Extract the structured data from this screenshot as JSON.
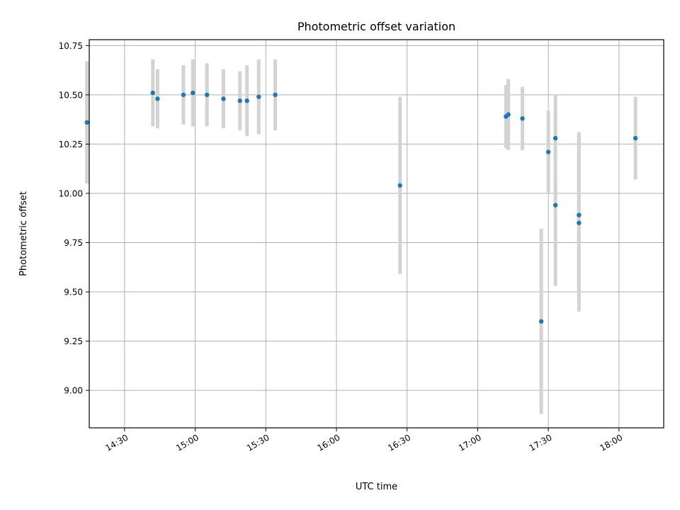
{
  "chart_data": {
    "type": "scatter",
    "title": "Photometric offset variation",
    "xlabel": "UTC time",
    "ylabel": "Photometric offset",
    "x_ticks": [
      "14:30",
      "15:00",
      "15:30",
      "16:00",
      "16:30",
      "17:00",
      "17:30",
      "18:00"
    ],
    "y_ticks": [
      "9.00",
      "9.25",
      "9.50",
      "9.75",
      "10.00",
      "10.25",
      "10.50",
      "10.75"
    ],
    "xlim": [
      "14:15",
      "18:19"
    ],
    "ylim": [
      8.81,
      10.78
    ],
    "grid": true,
    "errorbar_color": "#d3d3d3",
    "point_color": "#1f77b4",
    "series": [
      {
        "points": [
          {
            "x": "14:14",
            "y": 10.36,
            "err": 0.31
          },
          {
            "x": "14:42",
            "y": 10.51,
            "err": 0.17
          },
          {
            "x": "14:44",
            "y": 10.48,
            "err": 0.15
          },
          {
            "x": "14:55",
            "y": 10.5,
            "err": 0.15
          },
          {
            "x": "14:59",
            "y": 10.51,
            "err": 0.17
          },
          {
            "x": "15:05",
            "y": 10.5,
            "err": 0.16
          },
          {
            "x": "15:12",
            "y": 10.48,
            "err": 0.15
          },
          {
            "x": "15:19",
            "y": 10.47,
            "err": 0.15
          },
          {
            "x": "15:22",
            "y": 10.47,
            "err": 0.18
          },
          {
            "x": "15:27",
            "y": 10.49,
            "err": 0.19
          },
          {
            "x": "15:34",
            "y": 10.5,
            "err": 0.18
          },
          {
            "x": "16:27",
            "y": 10.04,
            "err": 0.45
          },
          {
            "x": "17:12",
            "y": 10.39,
            "err": 0.16
          },
          {
            "x": "17:13",
            "y": 10.4,
            "err": 0.18
          },
          {
            "x": "17:19",
            "y": 10.38,
            "err": 0.16
          },
          {
            "x": "17:27",
            "y": 9.35,
            "err": 0.47
          },
          {
            "x": "17:30",
            "y": 10.21,
            "err": 0.21
          },
          {
            "x": "17:33",
            "y": 10.28,
            "err": 0.22
          },
          {
            "x": "17:33",
            "y": 9.94,
            "err": 0.41
          },
          {
            "x": "17:43",
            "y": 9.89,
            "err": 0.42
          },
          {
            "x": "17:43",
            "y": 9.85,
            "err": 0.45
          },
          {
            "x": "18:07",
            "y": 10.28,
            "err": 0.21
          }
        ]
      }
    ]
  }
}
